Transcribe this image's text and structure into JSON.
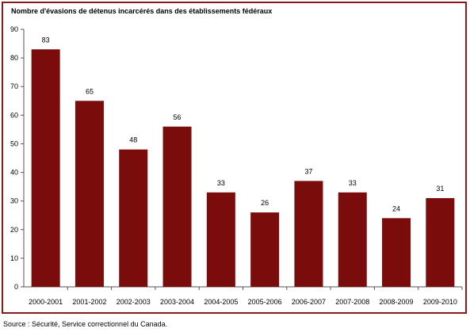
{
  "chart_data": {
    "type": "bar",
    "title": "Nombre d'évasions de détenus incarcérés dans des établissements fédéraux",
    "categories": [
      "2000-2001",
      "2001-2002",
      "2002-2003",
      "2003-2004",
      "2004-2005",
      "2005-2006",
      "2006-2007",
      "2007-2008",
      "2008-2009",
      "2009-2010"
    ],
    "values": [
      83,
      65,
      48,
      56,
      33,
      26,
      37,
      33,
      24,
      31
    ],
    "ylim": [
      0,
      90
    ],
    "yticks": [
      0,
      10,
      20,
      30,
      40,
      50,
      60,
      70,
      80,
      90
    ],
    "xlabel": "",
    "ylabel": "",
    "grid": false,
    "legend": "none",
    "bar_color": "#7b0c0c",
    "border_color": "#8b1a1a"
  },
  "source": "Source : Sécurité, Service correctionnel du Canada."
}
